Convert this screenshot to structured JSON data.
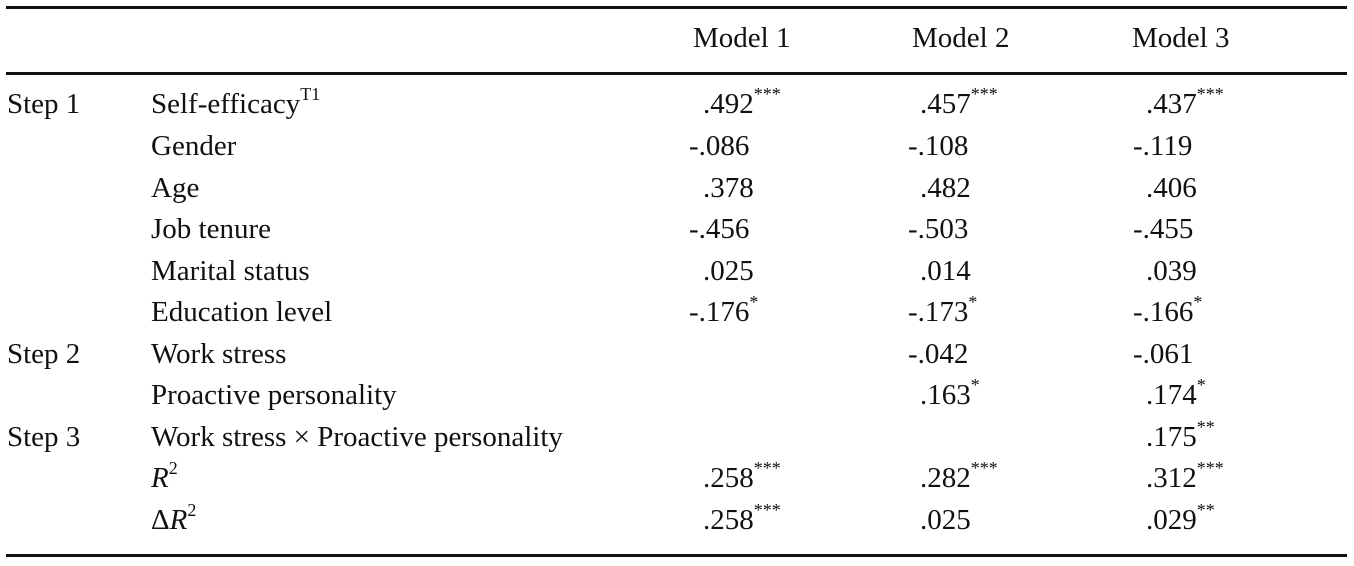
{
  "columns": [
    "Model 1",
    "Model 2",
    "Model 3"
  ],
  "rows": [
    {
      "step": "Step 1",
      "label": "Self-efficacy",
      "label_sup": "T1",
      "values": [
        {
          "v": ".492",
          "s": "***"
        },
        {
          "v": ".457",
          "s": "***"
        },
        {
          "v": ".437",
          "s": "***"
        }
      ]
    },
    {
      "step": "",
      "label": "Gender",
      "label_sup": "",
      "values": [
        {
          "v": "-.086",
          "s": ""
        },
        {
          "v": "-.108",
          "s": ""
        },
        {
          "v": "-.119",
          "s": ""
        }
      ]
    },
    {
      "step": "",
      "label": "Age",
      "label_sup": "",
      "values": [
        {
          "v": ".378",
          "s": ""
        },
        {
          "v": ".482",
          "s": ""
        },
        {
          "v": ".406",
          "s": ""
        }
      ]
    },
    {
      "step": "",
      "label": "Job tenure",
      "label_sup": "",
      "values": [
        {
          "v": "-.456",
          "s": ""
        },
        {
          "v": "-.503",
          "s": ""
        },
        {
          "v": "-.455",
          "s": ""
        }
      ]
    },
    {
      "step": "",
      "label": "Marital status",
      "label_sup": "",
      "values": [
        {
          "v": ".025",
          "s": ""
        },
        {
          "v": ".014",
          "s": ""
        },
        {
          "v": ".039",
          "s": ""
        }
      ]
    },
    {
      "step": "",
      "label": "Education level",
      "label_sup": "",
      "values": [
        {
          "v": "-.176",
          "s": "*"
        },
        {
          "v": "-.173",
          "s": "*"
        },
        {
          "v": "-.166",
          "s": "*"
        }
      ]
    },
    {
      "step": "Step 2",
      "label": "Work stress",
      "label_sup": "",
      "values": [
        {
          "v": "",
          "s": ""
        },
        {
          "v": "-.042",
          "s": ""
        },
        {
          "v": "-.061",
          "s": ""
        }
      ]
    },
    {
      "step": "",
      "label": "Proactive personality",
      "label_sup": "",
      "values": [
        {
          "v": "",
          "s": ""
        },
        {
          "v": ".163",
          "s": "*"
        },
        {
          "v": ".174",
          "s": "*"
        }
      ]
    },
    {
      "step": "Step 3",
      "label": "Work stress × Proactive personality",
      "label_sup": "",
      "values": [
        {
          "v": "",
          "s": ""
        },
        {
          "v": "",
          "s": ""
        },
        {
          "v": ".175",
          "s": "**"
        }
      ]
    },
    {
      "step": "",
      "label": "R",
      "label_sup": "2",
      "italic": true,
      "values": [
        {
          "v": ".258",
          "s": "***"
        },
        {
          "v": ".282",
          "s": "***"
        },
        {
          "v": ".312",
          "s": "***"
        }
      ]
    },
    {
      "step": "",
      "label": "ΔR",
      "label_sup": "2",
      "italic": true,
      "values": [
        {
          "v": ".258",
          "s": "***"
        },
        {
          "v": ".025",
          "s": ""
        },
        {
          "v": ".029",
          "s": "**"
        }
      ]
    }
  ]
}
